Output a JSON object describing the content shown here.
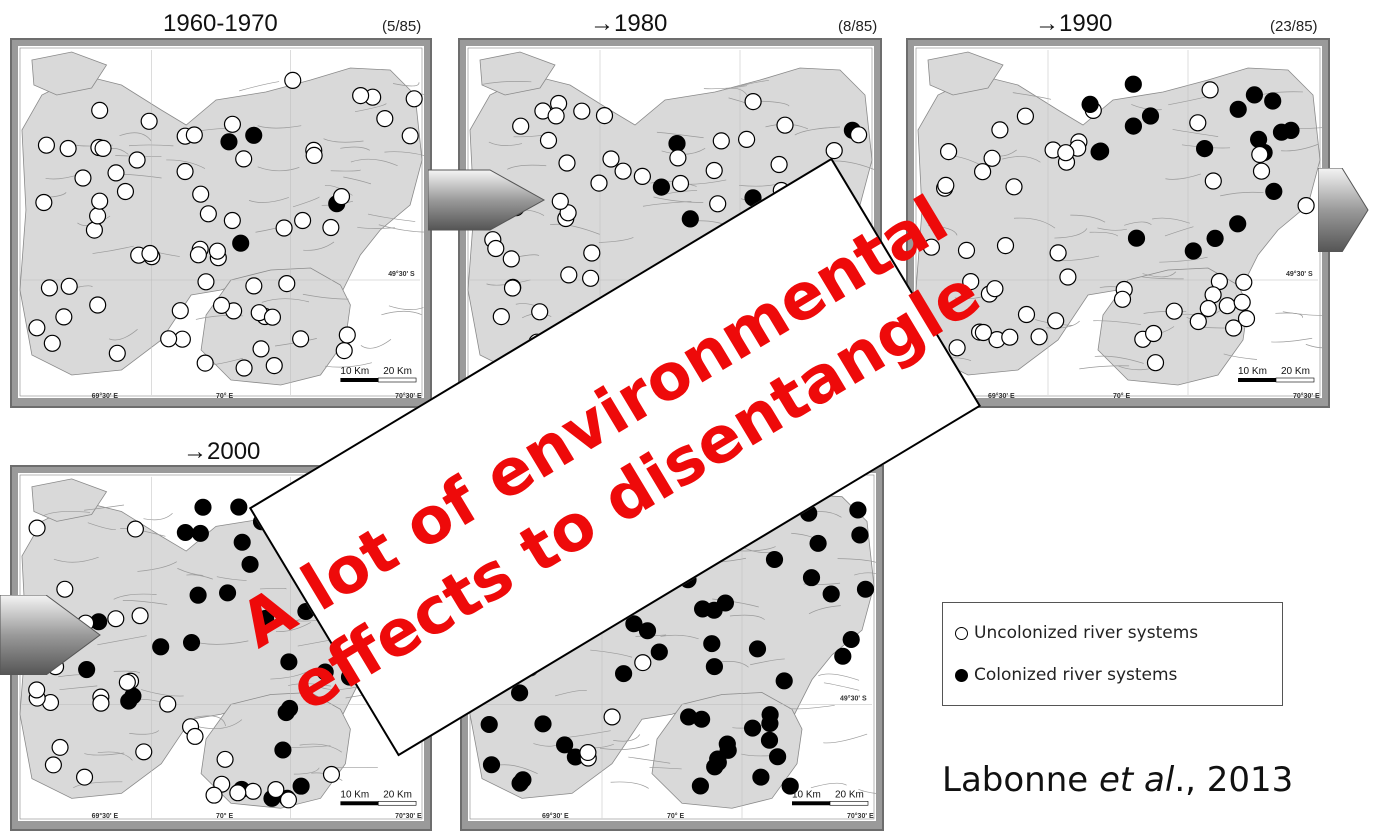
{
  "panels": [
    {
      "title": "1960-1970",
      "count": "(5/85)"
    },
    {
      "title": "→1980",
      "count": "(8/85)"
    },
    {
      "title": "→1990",
      "count": "(23/85)"
    },
    {
      "title": "→2000",
      "count": ""
    },
    {
      "title": "",
      "count": ")"
    }
  ],
  "map_labels": {
    "scale_10": "10 Km",
    "scale_20": "20 Km",
    "lon_1": "69°30' E",
    "lon_2": "70° E",
    "lon_3": "70°30' E",
    "lat_1": "49°30' S"
  },
  "overlay": {
    "line1": "A lot of environmental",
    "line2": "effects to disentangle"
  },
  "legend": {
    "uncolonized": "Uncolonized river systems",
    "colonized": "Colonized river systems"
  },
  "citation": {
    "author": "Labonne ",
    "etal": "et al",
    "rest": "., 2013"
  },
  "colors": {
    "land": "#d9d9d9",
    "frame": "#6d6d6d",
    "overlay_text": "#ee0a0a",
    "colonized": "#000000",
    "uncolonized": "#ffffff"
  }
}
